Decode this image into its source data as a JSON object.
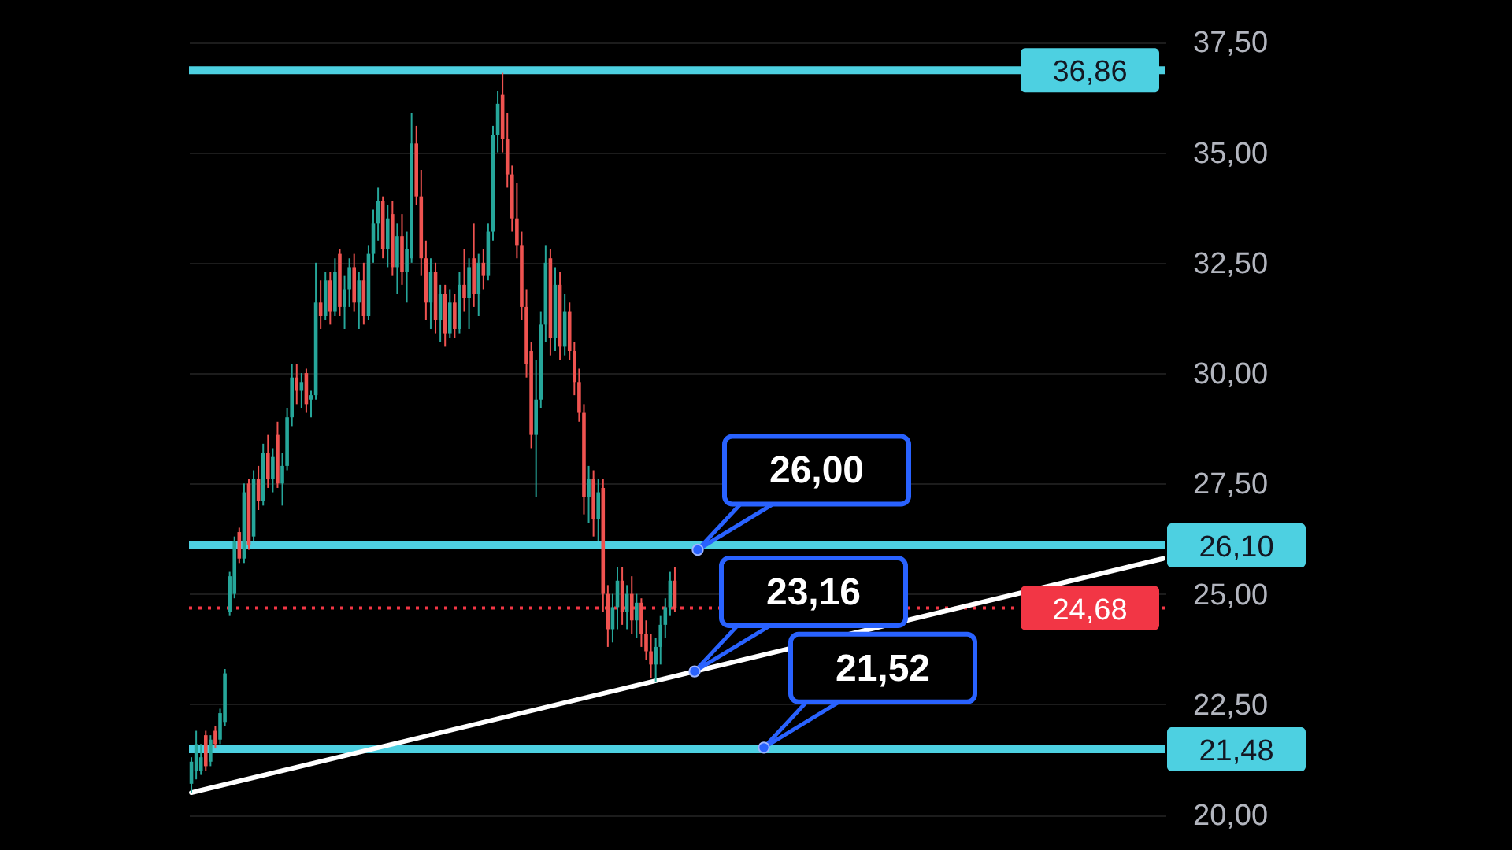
{
  "chart_data": {
    "type": "candlestick",
    "categories": [
      null,
      null,
      null,
      null,
      null,
      null,
      null,
      null,
      null,
      null,
      null,
      null,
      null,
      null,
      null,
      null,
      null,
      null,
      null,
      null,
      null,
      null,
      null,
      null,
      null,
      null,
      null,
      null,
      null,
      null,
      null,
      null,
      null,
      null,
      null,
      null,
      null,
      null,
      null,
      null,
      null,
      null,
      null,
      null,
      null,
      null,
      null,
      null,
      null,
      null,
      null,
      null,
      null,
      null,
      null,
      null,
      null,
      null,
      null,
      null,
      null,
      null,
      null,
      null,
      null,
      null,
      null,
      null,
      null,
      null,
      null,
      null,
      null,
      null,
      null,
      null,
      null,
      null,
      null,
      null,
      null,
      null,
      null,
      null,
      null,
      null,
      null,
      null,
      null,
      null,
      null,
      null,
      null,
      null,
      null,
      null,
      null,
      null,
      null,
      null,
      null,
      null,
      null,
      null,
      null,
      null,
      null,
      null,
      null,
      null,
      null,
      null,
      null,
      null,
      null,
      null,
      null,
      null,
      null,
      null,
      null,
      null,
      null,
      null,
      null,
      null,
      null,
      null,
      null,
      null,
      null,
      null,
      null,
      null,
      null,
      null,
      null,
      null,
      null,
      null,
      null,
      null,
      null,
      null,
      null,
      null,
      null,
      null,
      null,
      null,
      null,
      null,
      null,
      null,
      null,
      null,
      null,
      null,
      null,
      null,
      null,
      null,
      null,
      null,
      null,
      null,
      null,
      null,
      null,
      null,
      null,
      null,
      null,
      null,
      null,
      null,
      null,
      null,
      null,
      null,
      null,
      null,
      null,
      null,
      null,
      null,
      null,
      null,
      null,
      null,
      null,
      null,
      null,
      null,
      null,
      null,
      null,
      null,
      null,
      null,
      null,
      null,
      null,
      null
    ],
    "ohlc": [
      [
        20.7,
        21.3,
        20.5,
        21.2
      ],
      [
        21.0,
        21.9,
        20.8,
        21.6
      ],
      [
        21.0,
        21.6,
        20.9,
        21.3
      ],
      [
        21.8,
        21.9,
        21.0,
        21.1
      ],
      [
        21.2,
        21.8,
        21.1,
        21.7
      ],
      [
        21.9,
        22.0,
        21.5,
        21.6
      ],
      [
        21.7,
        22.4,
        21.6,
        22.3
      ],
      [
        22.1,
        23.3,
        22.0,
        23.2
      ],
      [
        24.6,
        25.5,
        24.5,
        25.4
      ],
      [
        25.0,
        26.3,
        24.9,
        26.2
      ],
      [
        26.4,
        26.5,
        25.7,
        25.8
      ],
      [
        25.8,
        27.5,
        25.7,
        27.3
      ],
      [
        27.5,
        27.6,
        26.0,
        26.1
      ],
      [
        26.3,
        27.8,
        26.2,
        27.6
      ],
      [
        27.6,
        27.9,
        26.9,
        27.1
      ],
      [
        27.1,
        28.4,
        27.0,
        28.2
      ],
      [
        28.2,
        28.6,
        27.4,
        27.6
      ],
      [
        27.6,
        28.3,
        27.3,
        28.1
      ],
      [
        28.6,
        28.9,
        27.4,
        27.5
      ],
      [
        27.5,
        28.2,
        27.0,
        27.9
      ],
      [
        27.9,
        29.2,
        27.8,
        29.0
      ],
      [
        29.0,
        30.2,
        28.8,
        29.9
      ],
      [
        29.9,
        30.2,
        29.3,
        29.6
      ],
      [
        29.6,
        30.0,
        29.2,
        29.8
      ],
      [
        30.0,
        30.1,
        29.1,
        29.3
      ],
      [
        29.4,
        29.6,
        29.0,
        29.5
      ],
      [
        29.5,
        32.5,
        29.4,
        31.6
      ],
      [
        31.6,
        32.1,
        31.0,
        31.3
      ],
      [
        31.3,
        32.3,
        31.2,
        32.1
      ],
      [
        32.1,
        32.3,
        31.1,
        31.4
      ],
      [
        31.4,
        32.6,
        31.3,
        32.3
      ],
      [
        32.7,
        32.8,
        31.3,
        31.5
      ],
      [
        31.5,
        32.2,
        31.0,
        31.9
      ],
      [
        31.9,
        32.6,
        31.5,
        32.4
      ],
      [
        32.4,
        32.7,
        31.4,
        31.6
      ],
      [
        31.6,
        32.3,
        31.0,
        32.1
      ],
      [
        32.1,
        32.5,
        31.1,
        31.3
      ],
      [
        31.3,
        32.9,
        31.2,
        32.7
      ],
      [
        32.7,
        33.7,
        32.5,
        33.4
      ],
      [
        33.4,
        34.2,
        33.0,
        33.9
      ],
      [
        33.9,
        34.0,
        32.6,
        32.8
      ],
      [
        32.8,
        33.8,
        32.4,
        33.5
      ],
      [
        33.6,
        33.9,
        32.2,
        32.4
      ],
      [
        32.4,
        33.4,
        31.8,
        33.1
      ],
      [
        33.1,
        33.6,
        32.0,
        32.3
      ],
      [
        32.3,
        33.2,
        31.6,
        32.8
      ],
      [
        32.6,
        35.9,
        32.5,
        35.2
      ],
      [
        35.2,
        35.6,
        33.8,
        34.0
      ],
      [
        34.0,
        34.6,
        32.2,
        32.6
      ],
      [
        32.6,
        33.0,
        31.2,
        31.6
      ],
      [
        31.6,
        32.6,
        31.0,
        32.3
      ],
      [
        32.3,
        32.5,
        30.9,
        31.2
      ],
      [
        31.2,
        32.0,
        30.7,
        31.8
      ],
      [
        31.8,
        32.0,
        30.6,
        30.9
      ],
      [
        30.9,
        31.9,
        30.8,
        31.6
      ],
      [
        31.6,
        31.8,
        30.8,
        31.0
      ],
      [
        31.0,
        32.3,
        30.9,
        32.0
      ],
      [
        32.0,
        32.8,
        31.4,
        31.7
      ],
      [
        31.7,
        32.6,
        31.0,
        32.4
      ],
      [
        32.6,
        33.4,
        31.5,
        31.8
      ],
      [
        31.8,
        32.7,
        31.3,
        32.5
      ],
      [
        32.5,
        32.8,
        31.9,
        32.2
      ],
      [
        32.2,
        33.4,
        32.1,
        33.2
      ],
      [
        33.2,
        35.6,
        33.0,
        35.4
      ],
      [
        35.4,
        36.4,
        35.0,
        36.1
      ],
      [
        36.3,
        36.8,
        35.0,
        35.3
      ],
      [
        35.3,
        35.9,
        34.2,
        34.5
      ],
      [
        34.5,
        34.7,
        33.2,
        33.5
      ],
      [
        33.5,
        34.3,
        32.6,
        32.9
      ],
      [
        32.9,
        33.2,
        31.2,
        31.5
      ],
      [
        31.5,
        31.9,
        29.9,
        30.2
      ],
      [
        30.5,
        30.7,
        28.3,
        28.6
      ],
      [
        28.6,
        30.3,
        27.2,
        29.4
      ],
      [
        29.4,
        31.4,
        29.2,
        31.1
      ],
      [
        31.1,
        32.9,
        30.7,
        32.5
      ],
      [
        32.6,
        32.8,
        30.4,
        30.8
      ],
      [
        30.8,
        32.4,
        30.5,
        32.0
      ],
      [
        32.0,
        32.3,
        30.3,
        30.6
      ],
      [
        30.6,
        31.8,
        30.4,
        31.4
      ],
      [
        31.4,
        31.6,
        30.3,
        30.5
      ],
      [
        30.5,
        30.7,
        29.5,
        29.8
      ],
      [
        29.8,
        30.1,
        28.9,
        29.1
      ],
      [
        29.1,
        29.3,
        26.8,
        27.2
      ],
      [
        27.2,
        27.9,
        26.6,
        27.6
      ],
      [
        27.6,
        27.8,
        26.3,
        26.7
      ],
      [
        26.7,
        27.6,
        26.2,
        27.3
      ],
      [
        27.4,
        27.6,
        24.6,
        25.0
      ],
      [
        25.0,
        25.2,
        23.8,
        24.2
      ],
      [
        24.2,
        25.0,
        23.9,
        24.7
      ],
      [
        24.7,
        25.6,
        24.2,
        25.3
      ],
      [
        25.3,
        25.6,
        24.3,
        24.6
      ],
      [
        24.6,
        25.2,
        24.2,
        25.0
      ],
      [
        25.0,
        25.4,
        24.1,
        24.4
      ],
      [
        24.4,
        25.0,
        24.0,
        24.8
      ],
      [
        24.8,
        24.9,
        23.8,
        24.1
      ],
      [
        24.1,
        24.4,
        23.5,
        23.7
      ],
      [
        23.7,
        24.1,
        23.1,
        23.4
      ],
      [
        23.4,
        24.0,
        23.0,
        23.8
      ],
      [
        23.8,
        24.5,
        23.4,
        24.3
      ],
      [
        24.3,
        24.9,
        24.0,
        24.7
      ],
      [
        24.7,
        25.5,
        24.5,
        25.3
      ],
      [
        25.3,
        25.6,
        24.6,
        24.68
      ],
      null,
      null,
      null,
      null,
      null,
      null,
      null,
      null,
      null,
      null,
      null,
      null,
      null,
      null,
      null,
      null,
      null,
      null,
      null,
      null,
      null,
      null,
      null,
      null,
      null,
      null,
      null,
      null,
      null,
      null,
      null,
      null,
      null,
      null,
      null,
      null,
      null,
      null,
      null,
      null,
      null,
      null,
      null,
      null,
      null,
      null,
      null,
      null,
      null,
      null,
      null,
      null,
      null,
      null,
      null,
      null,
      null,
      null,
      null,
      null,
      null,
      null,
      null,
      null,
      null,
      null,
      null,
      null,
      null,
      null,
      null,
      null,
      null,
      null,
      null,
      null,
      null,
      null,
      null,
      null,
      null,
      null,
      null,
      null,
      null,
      null,
      null,
      null,
      null,
      null,
      null,
      null,
      null,
      null,
      null,
      null,
      null,
      null,
      null,
      null,
      null,
      null
    ],
    "colors": [
      "#26a69a",
      "#26a69a",
      "#26a69a",
      "#ef5350",
      "#26a69a",
      "#ef5350",
      "#26a69a",
      "#26a69a",
      "#26a69a",
      "#26a69a",
      "#ef5350",
      "#26a69a",
      "#ef5350",
      "#26a69a",
      "#ef5350",
      "#26a69a",
      "#ef5350",
      "#26a69a",
      "#ef5350",
      "#26a69a",
      "#26a69a",
      "#26a69a",
      "#ef5350",
      "#26a69a",
      "#ef5350",
      "#26a69a",
      "#26a69a",
      "#ef5350",
      "#26a69a",
      "#ef5350",
      "#26a69a",
      "#ef5350",
      "#26a69a",
      "#26a69a",
      "#ef5350",
      "#26a69a",
      "#ef5350",
      "#26a69a",
      "#26a69a",
      "#26a69a",
      "#ef5350",
      "#26a69a",
      "#ef5350",
      "#26a69a",
      "#ef5350",
      "#26a69a",
      "#26a69a",
      "#ef5350",
      "#ef5350",
      "#ef5350",
      "#26a69a",
      "#ef5350",
      "#26a69a",
      "#ef5350",
      "#26a69a",
      "#ef5350",
      "#26a69a",
      "#ef5350",
      "#26a69a",
      "#ef5350",
      "#26a69a",
      "#ef5350",
      "#26a69a",
      "#26a69a",
      "#26a69a",
      "#ef5350",
      "#ef5350",
      "#ef5350",
      "#ef5350",
      "#ef5350",
      "#ef5350",
      "#ef5350",
      "#26a69a",
      "#26a69a",
      "#26a69a",
      "#ef5350",
      "#26a69a",
      "#ef5350",
      "#26a69a",
      "#ef5350",
      "#ef5350",
      "#ef5350",
      "#ef5350",
      "#26a69a",
      "#ef5350",
      "#26a69a",
      "#ef5350",
      "#ef5350",
      "#26a69a",
      "#26a69a",
      "#ef5350",
      "#26a69a",
      "#ef5350",
      "#26a69a",
      "#ef5350",
      "#ef5350",
      "#ef5350",
      "#26a69a",
      "#26a69a",
      "#26a69a",
      "#26a69a",
      "#ef5350",
      null,
      null,
      null,
      null,
      null,
      null,
      null,
      null,
      null,
      null,
      null,
      null,
      null,
      null,
      null,
      null,
      null,
      null,
      null,
      null,
      null,
      null,
      null,
      null,
      null,
      null,
      null,
      null,
      null,
      null,
      null,
      null,
      null,
      null,
      null,
      null,
      null,
      null,
      null,
      null,
      null,
      null,
      null,
      null,
      null,
      null,
      null,
      null,
      null,
      null,
      null,
      null,
      null,
      null,
      null,
      null,
      null,
      null,
      null,
      null,
      null,
      null,
      null,
      null,
      null,
      null,
      null,
      null,
      null,
      null,
      null,
      null,
      null,
      null,
      null,
      null,
      null,
      null,
      null,
      null,
      null,
      null,
      null,
      null,
      null,
      null,
      null,
      null,
      null,
      null,
      null,
      null,
      null,
      null,
      null,
      null,
      null,
      null,
      null,
      null,
      null,
      null
    ],
    "series": [
      {
        "type": "line",
        "color": "#ffffff",
        "values": [
          20.5,
          null,
          null,
          null,
          null,
          null,
          null,
          null,
          null,
          null,
          null,
          null,
          null,
          null,
          null,
          null,
          null,
          null,
          null,
          null,
          null,
          null,
          null,
          null,
          null,
          null,
          null,
          null,
          null,
          null,
          null,
          null,
          null,
          null,
          null,
          null,
          null,
          null,
          null,
          null,
          null,
          null,
          null,
          null,
          null,
          null,
          null,
          null,
          null,
          null,
          null,
          null,
          null,
          null,
          null,
          null,
          null,
          null,
          null,
          null,
          null,
          null,
          null,
          null,
          null,
          null,
          null,
          null,
          null,
          null,
          null,
          null,
          null,
          null,
          null,
          null,
          null,
          null,
          null,
          null,
          null,
          null,
          null,
          null,
          null,
          null,
          null,
          null,
          null,
          null,
          null,
          null,
          null,
          null,
          null,
          null,
          null,
          null,
          null,
          null,
          null,
          null,
          null,
          null,
          null,
          null,
          null,
          null,
          null,
          null,
          null,
          null,
          null,
          null,
          null,
          null,
          null,
          null,
          null,
          null,
          null,
          null,
          null,
          null,
          null,
          null,
          null,
          null,
          null,
          null,
          null,
          null,
          null,
          null,
          null,
          null,
          null,
          null,
          null,
          null,
          null,
          null,
          null,
          null,
          null,
          null,
          null,
          null,
          null,
          null,
          null,
          null,
          null,
          null,
          null,
          null,
          null,
          null,
          null,
          null,
          null,
          null,
          null,
          null,
          null,
          null,
          null,
          null,
          null,
          null,
          null,
          null,
          null,
          null,
          null,
          null,
          null,
          null,
          null,
          null,
          null,
          null,
          null,
          null,
          null,
          null,
          null,
          null,
          null,
          null,
          null,
          null,
          null,
          null,
          null,
          null,
          null,
          null,
          null,
          null,
          null,
          null,
          null,
          25.8
        ]
      }
    ],
    "ylim": [
      19.2,
      38.45
    ],
    "yticks": [
      {
        "value": 20,
        "label": "20,00"
      },
      {
        "value": 22.5,
        "label": "22,50"
      },
      {
        "value": 25,
        "label": "25,00"
      },
      {
        "value": 27.5,
        "label": "27,50"
      },
      {
        "value": 30,
        "label": "30,00"
      },
      {
        "value": 32.5,
        "label": "32,50"
      },
      {
        "value": 35,
        "label": "35,00"
      },
      {
        "value": 37.5,
        "label": "37,50"
      }
    ],
    "ref_lines": [
      {
        "axis": "y",
        "value": 36.86,
        "label": "36,86",
        "color": "#4dd0e1"
      },
      {
        "axis": "y",
        "value": 26.1,
        "label": "26,10",
        "color": "#4dd0e1"
      },
      {
        "axis": "y",
        "value": 21.48,
        "label": "21,48",
        "color": "#4dd0e1"
      },
      {
        "axis": "y",
        "value": 24.68,
        "label": "24,68",
        "color": "#f23645",
        "line_style": "dotted"
      }
    ],
    "annotations": [
      {
        "text": "26,00",
        "y": 26.0
      },
      "23,16",
      {
        "text": "21,52",
        "y": 21.52
      }
    ],
    "grid": true,
    "tick_labels": "y"
  }
}
